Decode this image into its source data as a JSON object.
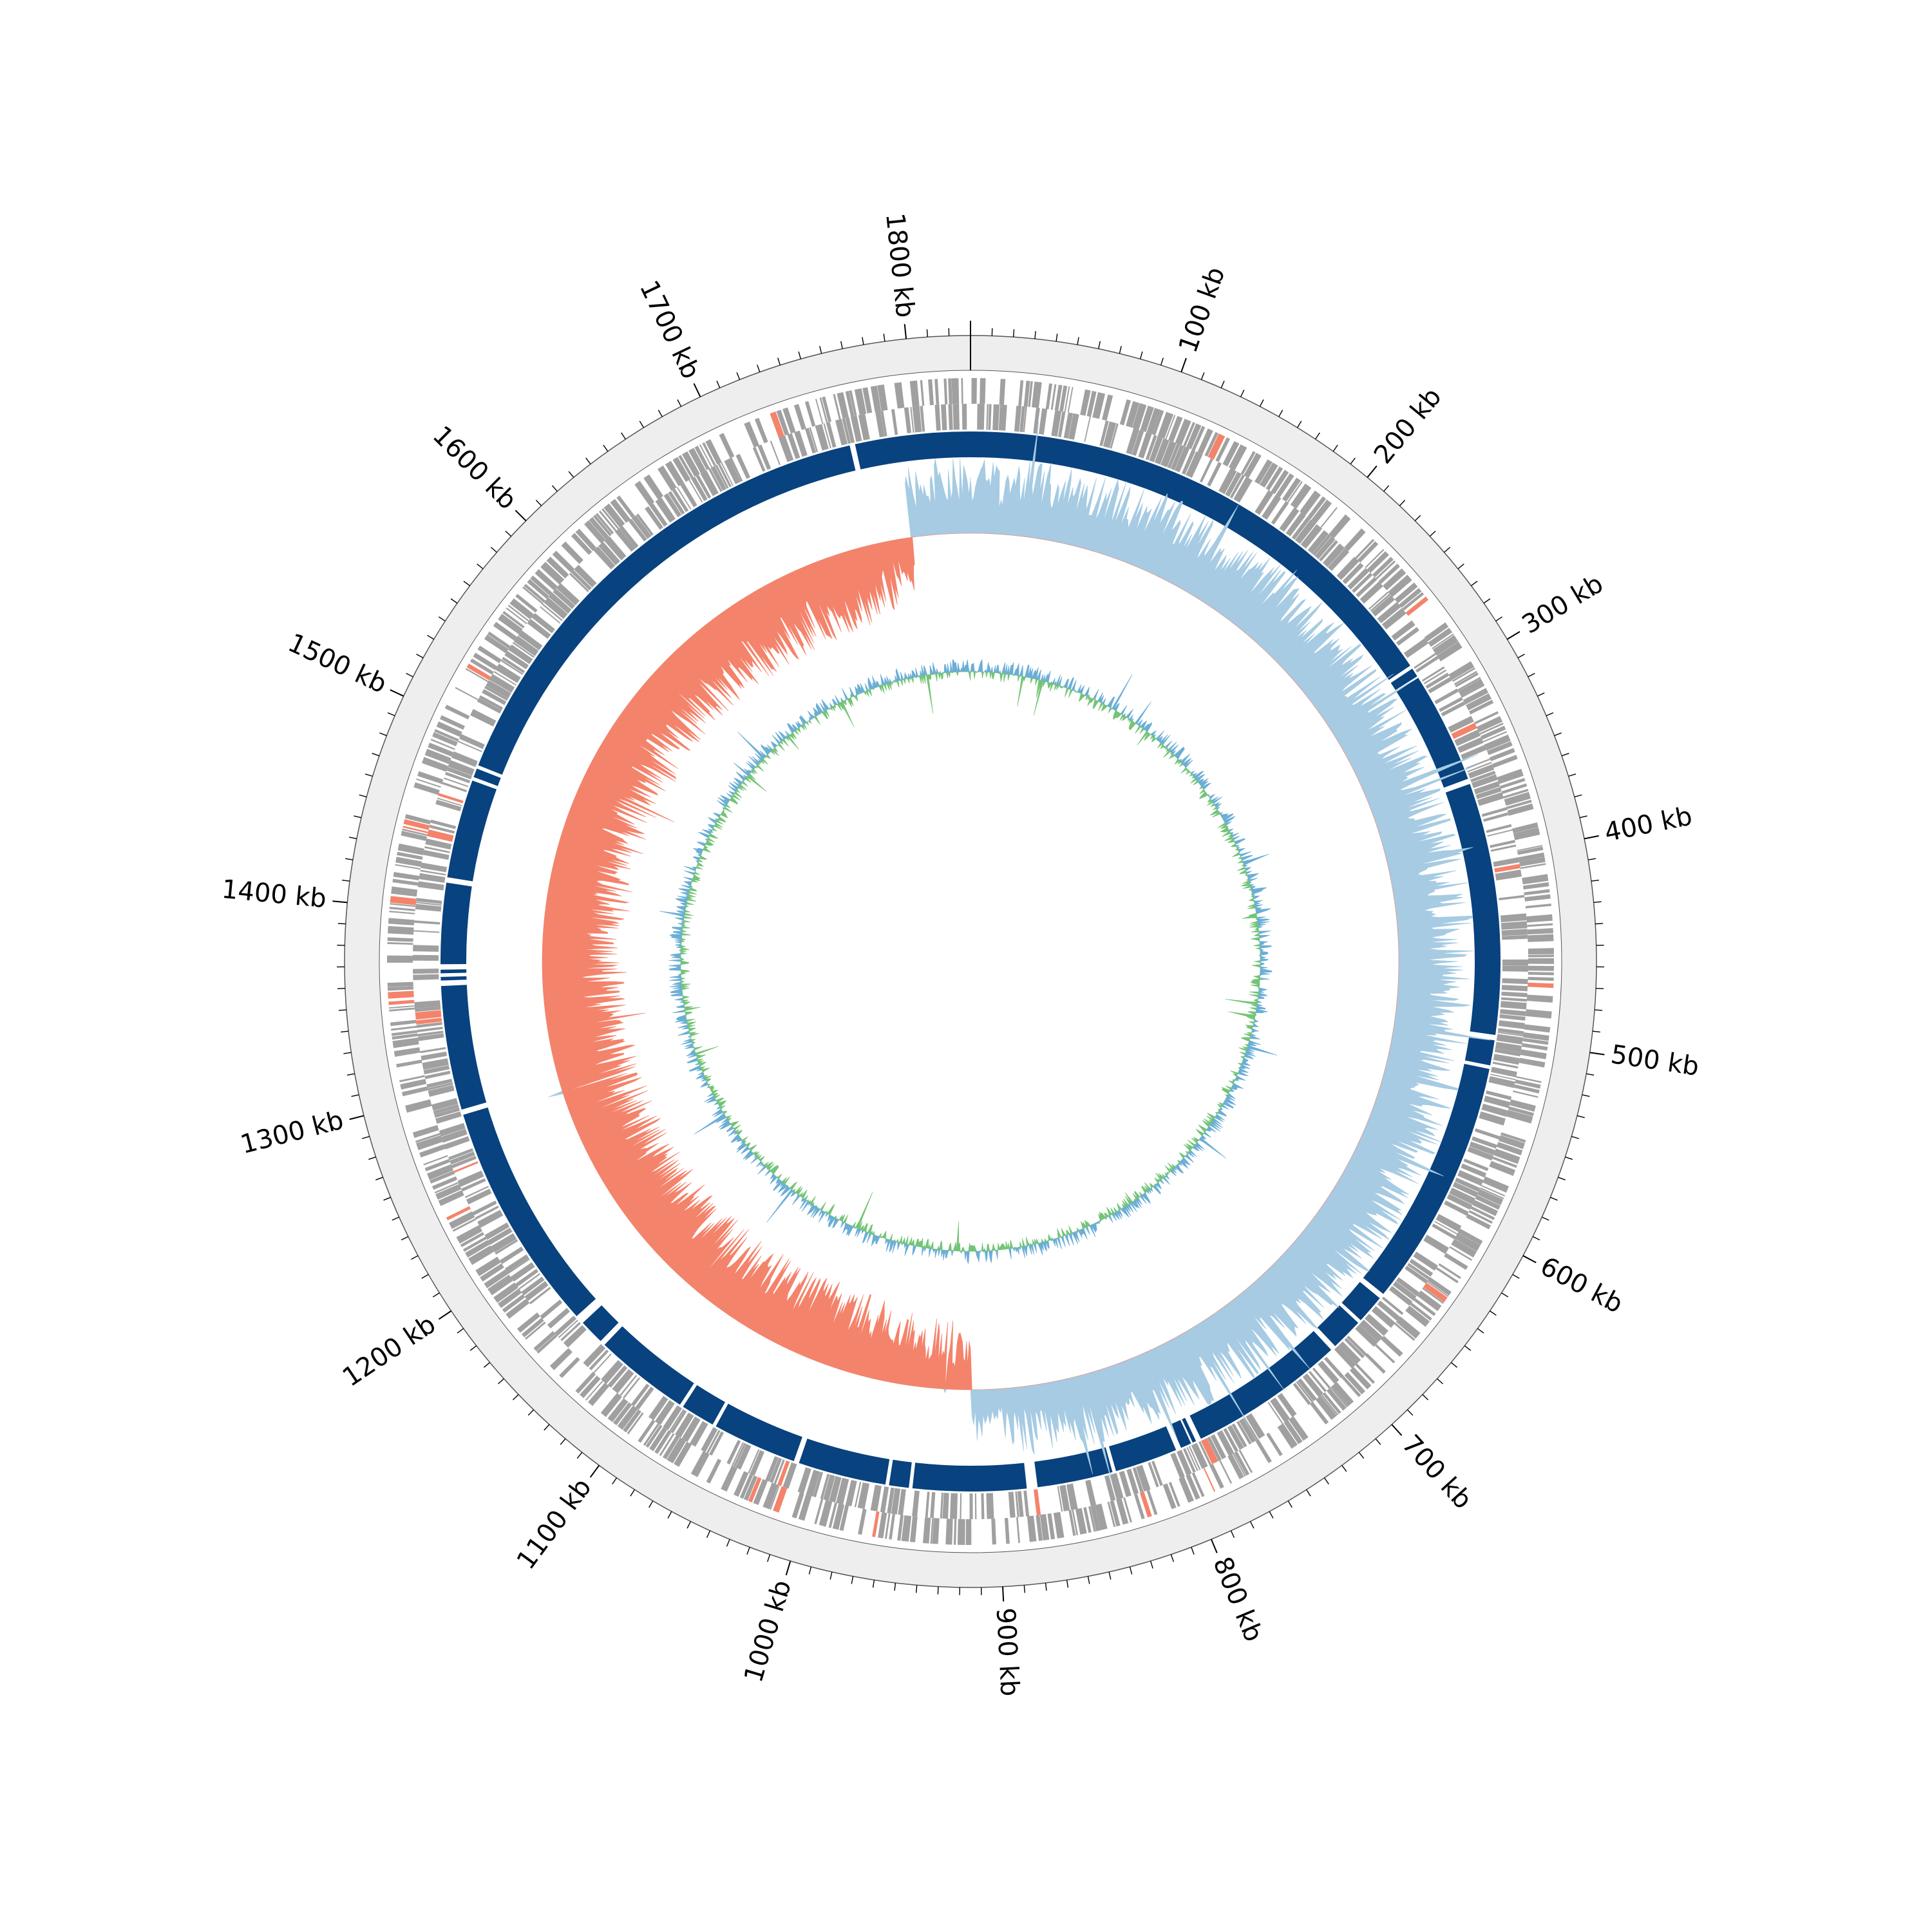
{
  "genome": {
    "length_kb": 1830,
    "start_kb": 0,
    "major_tick_interval_kb": 100,
    "minor_tick_interval_kb": 10
  },
  "axis": {
    "tick_labels": [
      "100 kb",
      "200 kb",
      "300 kb",
      "400 kb",
      "500 kb",
      "600 kb",
      "700 kb",
      "800 kb",
      "900 kb",
      "1000 kb",
      "1100 kb",
      "1200 kb",
      "1300 kb",
      "1400 kb",
      "1500 kb",
      "1600 kb",
      "1700 kb",
      "1800 kb"
    ]
  },
  "colors": {
    "outer_band": "#eeeeee",
    "gene_feature": "#a0a0a0",
    "rna_feature": "#f4836b",
    "contig_band": "#08427f",
    "gc_skew_positive": "#a6cbe3",
    "gc_skew_negative": "#f4836b",
    "gc_content_positive": "#6baed6",
    "gc_content_negative": "#74c476",
    "tick": "#000000"
  },
  "chart_data": {
    "type": "circular_genome_map",
    "contigs_kb": [
      [
        0,
        285
      ],
      [
        287,
        292
      ],
      [
        293,
        355
      ],
      [
        358,
        498
      ],
      [
        501,
        515
      ],
      [
        517,
        655
      ],
      [
        658,
        674
      ],
      [
        676,
        694
      ],
      [
        697,
        784
      ],
      [
        787,
        789
      ],
      [
        790,
        796
      ],
      [
        799,
        834
      ],
      [
        836,
        878
      ],
      [
        884,
        947
      ],
      [
        949,
        960
      ],
      [
        962,
        1011
      ],
      [
        1014,
        1061
      ],
      [
        1063,
        1082
      ],
      [
        1084,
        1137
      ],
      [
        1140,
        1154
      ],
      [
        1159,
        1287
      ],
      [
        1290,
        1359
      ],
      [
        1362,
        1364
      ],
      [
        1366,
        1368
      ],
      [
        1371,
        1416
      ],
      [
        1419,
        1474
      ],
      [
        1476,
        1481
      ],
      [
        1483,
        1763
      ],
      [
        1766,
        1830
      ]
    ],
    "gc_skew_profile": [
      {
        "kb": 0,
        "value": 0.05
      },
      {
        "kb": 100,
        "value": 0.06
      },
      {
        "kb": 300,
        "value": 0.05
      },
      {
        "kb": 500,
        "value": 0.05
      },
      {
        "kb": 700,
        "value": 0.06
      },
      {
        "kb": 850,
        "value": 0.04
      },
      {
        "kb": 915,
        "value": -0.01
      },
      {
        "kb": 1000,
        "value": -0.06
      },
      {
        "kb": 1200,
        "value": -0.06
      },
      {
        "kb": 1400,
        "value": -0.07
      },
      {
        "kb": 1600,
        "value": -0.06
      },
      {
        "kb": 1760,
        "value": -0.05
      },
      {
        "kb": 1790,
        "value": 0.05
      }
    ],
    "gc_skew_switch_points_kb": [
      915,
      1790
    ],
    "gc_content_profile": [
      {
        "kb": 0,
        "value": 0.0
      },
      {
        "kb": 400,
        "value": 0.0
      },
      {
        "kb": 900,
        "value": 0.0
      },
      {
        "kb": 1400,
        "value": 0.0
      },
      {
        "kb": 1830,
        "value": 0.0
      }
    ]
  }
}
